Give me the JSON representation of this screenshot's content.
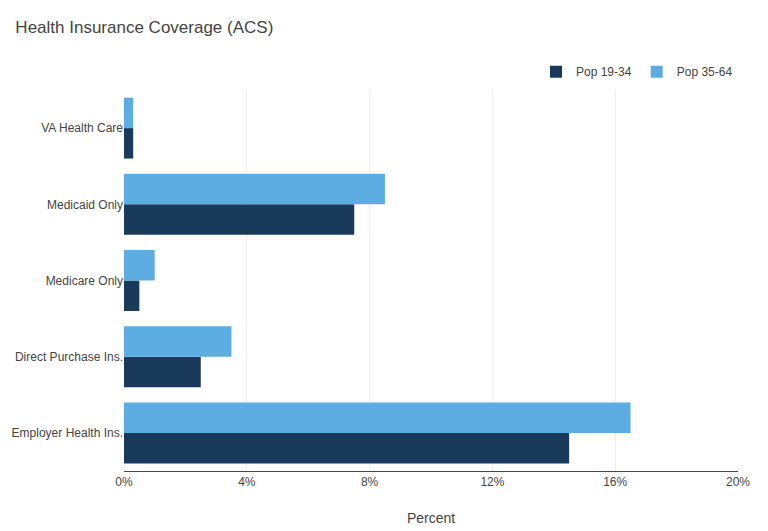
{
  "chart_data": {
    "type": "bar",
    "orientation": "horizontal",
    "title": "Health Insurance Coverage (ACS)",
    "xlabel": "Percent",
    "categories": [
      "Employer Health Ins.",
      "Direct Purchase Ins.",
      "Medicare Only",
      "Medicaid Only",
      "VA Health Care"
    ],
    "series": [
      {
        "name": "Pop 19-34",
        "color": "#1a3a5c",
        "values": [
          14.5,
          2.5,
          0.5,
          7.5,
          0.3
        ]
      },
      {
        "name": "Pop 35-64",
        "color": "#5dade2",
        "values": [
          16.5,
          3.5,
          1.0,
          8.5,
          0.3
        ]
      }
    ],
    "xlim": [
      0,
      20
    ],
    "xticks": [
      {
        "value": 0,
        "label": "0%"
      },
      {
        "value": 4,
        "label": "4%"
      },
      {
        "value": 8,
        "label": "8%"
      },
      {
        "value": 12,
        "label": "12%"
      },
      {
        "value": 16,
        "label": "16%"
      },
      {
        "value": 20,
        "label": "20%"
      }
    ],
    "grid": true,
    "legend": "upper right"
  }
}
